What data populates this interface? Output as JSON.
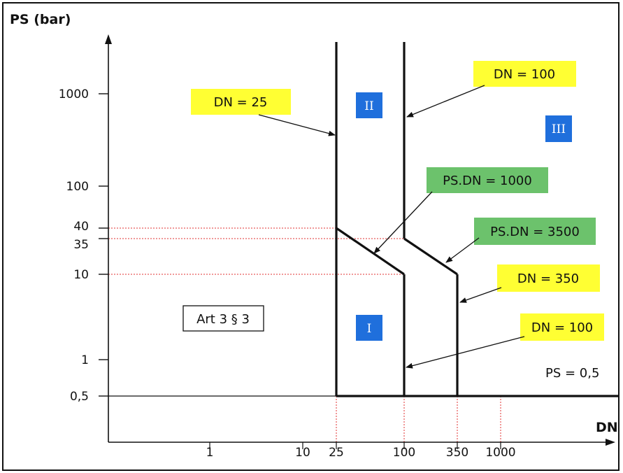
{
  "chart_data": {
    "type": "line",
    "title": "",
    "ylabel": "PS (bar)",
    "xlabel": "DN",
    "x_scale": "log",
    "y_scale": "log",
    "y_ticks": [
      {
        "value": 1000,
        "label": "1000"
      },
      {
        "value": 100,
        "label": "100"
      },
      {
        "value": 40,
        "label": "40"
      },
      {
        "value": 35,
        "label": "35"
      },
      {
        "value": 10,
        "label": "10"
      },
      {
        "value": 1,
        "label": "1"
      },
      {
        "value": 0.5,
        "label": "0,5"
      }
    ],
    "x_ticks": [
      {
        "value": 1,
        "label": "1"
      },
      {
        "value": 10,
        "label": "10"
      },
      {
        "value": 25,
        "label": "25"
      },
      {
        "value": 100,
        "label": "100"
      },
      {
        "value": 350,
        "label": "350"
      },
      {
        "value": 1000,
        "label": "1000"
      }
    ],
    "boundaries": [
      {
        "points": [
          [
            25,
            0.5
          ],
          [
            25,
            10000
          ]
        ]
      },
      {
        "points": [
          [
            25,
            40
          ],
          [
            100,
            10
          ]
        ]
      },
      {
        "points": [
          [
            100,
            0.5
          ],
          [
            100,
            10
          ]
        ]
      },
      {
        "points": [
          [
            100,
            35
          ],
          [
            100,
            10000
          ]
        ]
      },
      {
        "points": [
          [
            100,
            35
          ],
          [
            350,
            10
          ]
        ]
      },
      {
        "points": [
          [
            350,
            10
          ],
          [
            350,
            0.5
          ]
        ]
      },
      {
        "points": [
          [
            25,
            0.5
          ],
          [
            100000,
            0.5
          ]
        ]
      }
    ],
    "reference_lines": [
      {
        "axis": "y",
        "value": 40
      },
      {
        "axis": "y",
        "value": 35
      },
      {
        "axis": "y",
        "value": 10
      },
      {
        "axis": "x",
        "value": 25
      },
      {
        "axis": "x",
        "value": 100
      },
      {
        "axis": "x",
        "value": 350
      },
      {
        "axis": "x",
        "value": 1000
      }
    ],
    "categories": [
      {
        "label": "I",
        "color": "#1f6fdc"
      },
      {
        "label": "II",
        "color": "#1f6fdc"
      },
      {
        "label": "III",
        "color": "#1f6fdc"
      }
    ],
    "annotations": {
      "dn25": {
        "text": "DN = 25",
        "color": "#ffff33"
      },
      "dn100_top": {
        "text": "DN = 100",
        "color": "#ffff33"
      },
      "psdn1000": {
        "text": "PS.DN = 1000",
        "color": "#6cc26c"
      },
      "psdn3500": {
        "text": "PS.DN = 3500",
        "color": "#6cc26c"
      },
      "dn350": {
        "text": "DN = 350",
        "color": "#ffff33"
      },
      "dn100_bottom": {
        "text": "DN = 100",
        "color": "#ffff33"
      },
      "art": {
        "text": "Art 3 § 3"
      },
      "ps05": {
        "text": "PS = 0,5"
      }
    },
    "grid": false,
    "boundary_color": "#111111",
    "reference_color": "#e03030"
  }
}
